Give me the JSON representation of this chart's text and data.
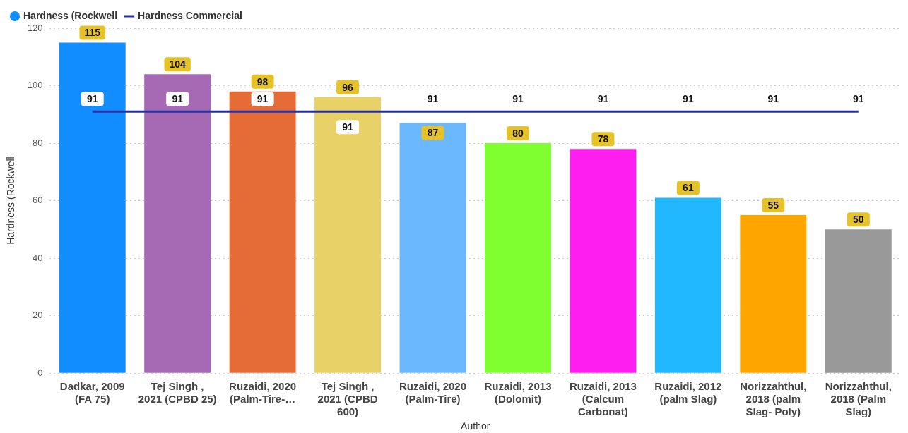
{
  "chart_data": {
    "type": "bar",
    "xlabel": "Author",
    "ylabel": "Hardness (Rockwell",
    "categories": [
      "Dadkar, 2009 (FA 75)",
      "Tej Singh , 2021 (CPBD 25)",
      "Ruzaidi, 2020 (Palm-Tire-…",
      "Tej Singh , 2021 (CPBD 600)",
      "Ruzaidi, 2020 (Palm-Tire)",
      "Ruzaidi, 2013 (Dolomit)",
      "Ruzaidi, 2013 (Calcum Carbonat)",
      "Ruzaidi, 2012 (palm Slag)",
      "Norizzahthul, 2018 (palm Slag- Poly)",
      "Norizzahthul, 2018 (Palm Slag)"
    ],
    "series": [
      {
        "name": "Hardness (Rockwell",
        "colors": [
          "#118dff",
          "#a66ab4",
          "#e66c37",
          "#e8d166",
          "#6cb8ff",
          "#7fff30",
          "#ff1ef0",
          "#22b8ff",
          "#ffa500",
          "#999999"
        ],
        "values": [
          115,
          104,
          98,
          96,
          87,
          80,
          78,
          61,
          55,
          50
        ]
      },
      {
        "name": "Hardness Commercial",
        "type": "line",
        "color": "#2730a0",
        "values": [
          91,
          91,
          91,
          91,
          91,
          91,
          91,
          91,
          91,
          91
        ]
      }
    ],
    "ylim": [
      0,
      120
    ],
    "yticks": [
      0,
      20,
      40,
      60,
      80,
      100,
      120
    ],
    "grid": "y",
    "legend": "top left",
    "data_labels": true,
    "marker": "none"
  }
}
